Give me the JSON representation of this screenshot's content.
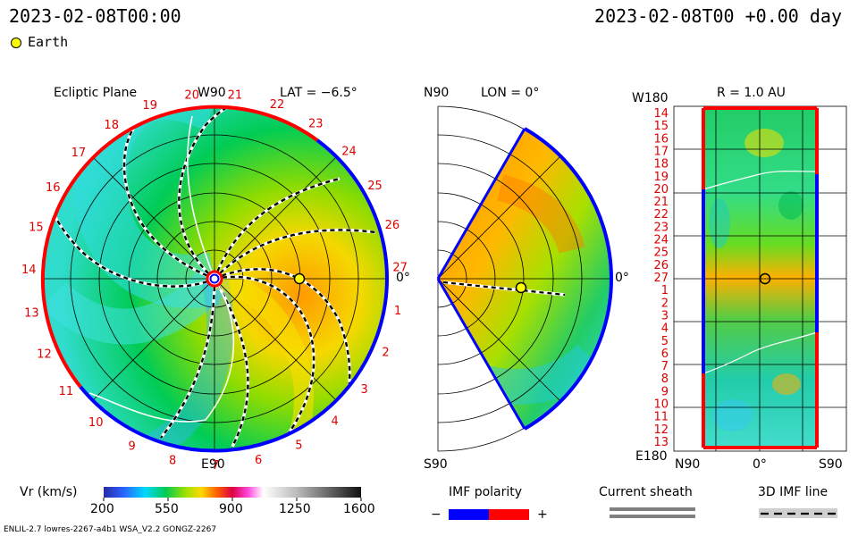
{
  "header": {
    "datetime_left": "2023-02-08T00:00",
    "datetime_right": "2023-02-08T00 +0.00 day",
    "legend_earth_label": "Earth"
  },
  "panel_ecliptic": {
    "title": "Ecliptic Plane",
    "top_label": "W90",
    "bottom_label": "E90",
    "zero_label": "0°",
    "lat_label": "LAT = −6.5°",
    "carrington_labels": [
      "20",
      "21",
      "22",
      "23",
      "24",
      "25",
      "26",
      "27",
      "1",
      "2",
      "3",
      "4",
      "5",
      "6",
      "7",
      "8",
      "9",
      "10",
      "11",
      "12",
      "13",
      "14",
      "15",
      "16",
      "17",
      "18",
      "19"
    ]
  },
  "panel_meridional": {
    "top_label": "N90",
    "bottom_label": "S90",
    "lon_label": "LON = 0°",
    "zero_label": "0°"
  },
  "panel_map": {
    "top_left_label": "W180",
    "title": "R = 1.0 AU",
    "bottom_left_label": "E180",
    "bottom_labels": [
      "N90",
      "0°",
      "S90"
    ],
    "rows": [
      "14",
      "15",
      "16",
      "17",
      "18",
      "19",
      "20",
      "21",
      "22",
      "23",
      "24",
      "25",
      "26",
      "27",
      "1",
      "2",
      "3",
      "4",
      "5",
      "6",
      "7",
      "8",
      "9",
      "10",
      "11",
      "12",
      "13"
    ]
  },
  "colorbar": {
    "label": "Vr (km/s)",
    "ticks": [
      "200",
      "550",
      "900",
      "1250",
      "1600"
    ]
  },
  "legend": {
    "imf_title": "IMF polarity",
    "imf_minus": "−",
    "imf_plus": "+",
    "sheath_title": "Current sheath",
    "imf_line_title": "3D IMF line"
  },
  "footer": {
    "model_info": "ENLIL-2.7 lowres-2267-a4b1 WSA_V2.2 GONGZ-2267"
  },
  "colors": {
    "red_polarity": "#ff0000",
    "blue_polarity": "#0000ff",
    "earth": "#ffff00",
    "label_red": "#e00000"
  }
}
